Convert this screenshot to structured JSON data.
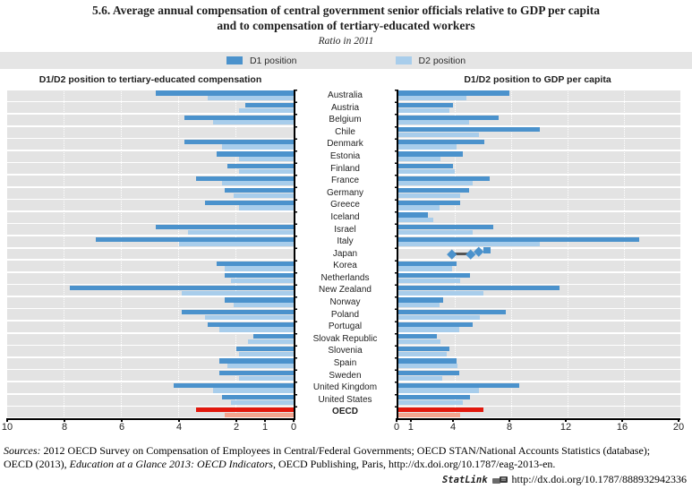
{
  "title": {
    "line1": "5.6.  Average annual compensation of central government senior officials relative to GDP per capita",
    "line2": "and to compensation of tertiary-educated workers"
  },
  "subtitle": "Ratio in 2011",
  "legend": {
    "items": [
      {
        "label": "D1 position",
        "color": "#4b92cc"
      },
      {
        "label": "D2 position",
        "color": "#a8cdeb"
      }
    ],
    "strip_color": "#e5e5e5"
  },
  "colors": {
    "d1": "#4b92cc",
    "d2": "#a8cdeb",
    "oecd_d1": "#e2180d",
    "oecd_d2": "#f3a58f",
    "band": "#e3e3e3",
    "marker": "#4b92cc",
    "connector": "#555555",
    "reference_line": "#000000"
  },
  "chart_data": [
    {
      "type": "bar",
      "orientation": "horizontal",
      "anchor": "right",
      "title": "D1/D2 position to tertiary-educated compensation",
      "xlim": [
        10,
        0
      ],
      "ticks": [
        10,
        8,
        6,
        4,
        2,
        1,
        0
      ],
      "gridlines": [
        2,
        4,
        6,
        8
      ],
      "reference_line": 1,
      "highlight_category": "OECD",
      "categories": [
        "Australia",
        "Austria",
        "Belgium",
        "Chile",
        "Denmark",
        "Estonia",
        "Finland",
        "France",
        "Germany",
        "Greece",
        "Iceland",
        "Israel",
        "Italy",
        "Japan",
        "Korea",
        "Netherlands",
        "New Zealand",
        "Norway",
        "Poland",
        "Portugal",
        "Slovak Republic",
        "Slovenia",
        "Spain",
        "Sweden",
        "United Kingdom",
        "United States",
        "OECD"
      ],
      "series": [
        {
          "name": "D1 position",
          "values": [
            4.8,
            1.7,
            3.8,
            null,
            3.8,
            2.7,
            2.3,
            3.4,
            2.4,
            3.1,
            null,
            4.8,
            6.9,
            null,
            2.7,
            2.4,
            7.8,
            2.4,
            3.9,
            3.0,
            1.4,
            2.0,
            2.6,
            2.6,
            4.2,
            2.5,
            3.4
          ]
        },
        {
          "name": "D2 position",
          "values": [
            3.0,
            1.9,
            2.8,
            null,
            2.5,
            1.9,
            1.9,
            2.5,
            2.1,
            1.9,
            null,
            3.7,
            4.0,
            null,
            2.4,
            2.2,
            3.9,
            2.1,
            3.1,
            2.6,
            1.6,
            1.9,
            2.3,
            1.9,
            2.8,
            2.2,
            2.4
          ]
        }
      ]
    },
    {
      "type": "bar",
      "orientation": "horizontal",
      "anchor": "left",
      "title": "D1/D2 position to GDP per capita",
      "xlim": [
        0,
        20
      ],
      "ticks": [
        0,
        1,
        4,
        8,
        12,
        16,
        20
      ],
      "gridlines": [
        4,
        8,
        12,
        16
      ],
      "reference_line": 1,
      "highlight_category": "OECD",
      "categories": [
        "Australia",
        "Austria",
        "Belgium",
        "Chile",
        "Denmark",
        "Estonia",
        "Finland",
        "France",
        "Germany",
        "Greece",
        "Iceland",
        "Israel",
        "Italy",
        "Japan",
        "Korea",
        "Netherlands",
        "New Zealand",
        "Norway",
        "Poland",
        "Portugal",
        "Slovak Republic",
        "Slovenia",
        "Spain",
        "Sweden",
        "United Kingdom",
        "United States",
        "OECD"
      ],
      "series": [
        {
          "name": "D1 position",
          "values": [
            7.9,
            3.9,
            7.1,
            10.0,
            6.1,
            4.6,
            3.9,
            6.5,
            5.0,
            4.4,
            2.1,
            6.7,
            17.1,
            null,
            4.1,
            5.1,
            11.4,
            3.2,
            7.6,
            5.3,
            2.7,
            3.6,
            4.1,
            4.3,
            8.6,
            5.1,
            6.0
          ]
        },
        {
          "name": "D2 position",
          "values": [
            4.8,
            3.6,
            5.0,
            5.7,
            4.1,
            3.0,
            4.0,
            5.3,
            4.4,
            2.9,
            2.5,
            5.3,
            10.0,
            null,
            3.8,
            4.4,
            6.0,
            2.9,
            5.8,
            4.3,
            3.0,
            3.4,
            4.2,
            3.1,
            5.7,
            4.6,
            4.4
          ]
        }
      ],
      "japan_markers": {
        "category": "Japan",
        "connector": [
          3.8,
          5.1
        ],
        "points": [
          {
            "shape": "diamond",
            "value": 3.8,
            "dy": 0
          },
          {
            "shape": "diamond",
            "value": 5.1,
            "dy": 0
          },
          {
            "shape": "diamond",
            "value": 5.7,
            "dy": -3
          },
          {
            "shape": "square",
            "value": 6.3,
            "dy": -4
          }
        ]
      }
    }
  ],
  "footer": {
    "line1_italic": "Sources:",
    "line1_rest": " 2012 OECD Survey on Compensation of Employees in Central/Federal Governments; OECD STAN/National Accounts Statistics (database);",
    "line2_pre": "OECD (2013), ",
    "line2_italic": "Education at a Glance 2013: OECD Indicators",
    "line2_post": ", OECD Publishing, Paris, http://dx.doi.org/10.1787/eag-2013-en."
  },
  "statlink": {
    "label": "StatLink",
    "url": "http://dx.doi.org/10.1787/888932942336"
  }
}
